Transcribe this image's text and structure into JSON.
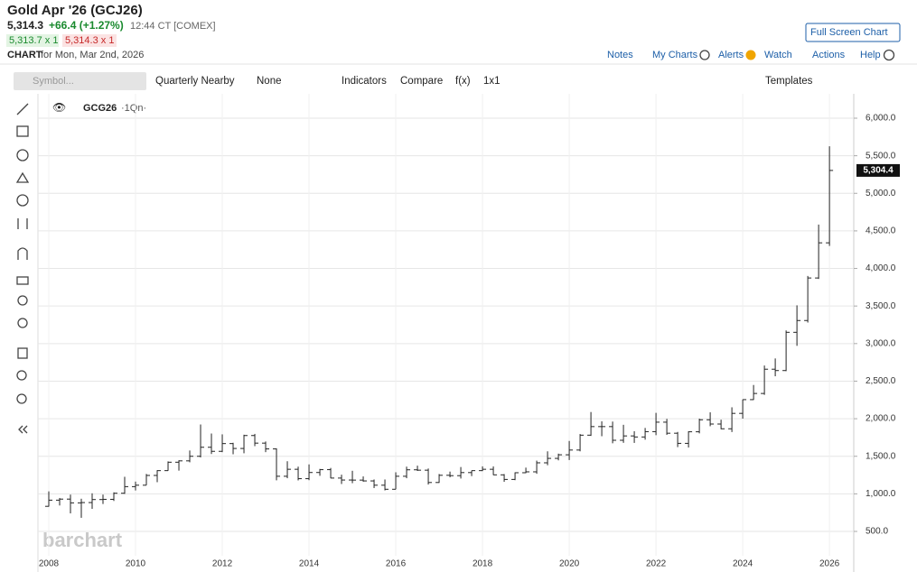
{
  "ui": {
    "title": "Gold Apr '26 (GCJ26)",
    "price": "5,314.3",
    "change": "+66.4 (+1.27%)",
    "time": "12:44 CT [COMEX]",
    "bid": "5,313.7 x 1",
    "ask": "5,314.3 x 1",
    "chart_label": "CHART",
    "chart_date": "for Mon, Mar 2nd, 2026",
    "fullscreen": "Full Screen Chart",
    "nav": [
      "Notes",
      "My Charts",
      "Alerts",
      "Watch",
      "Actions",
      "Help"
    ],
    "symbol_placeholder": "Symbol...",
    "toolbar": [
      "Quarterly Nearby",
      "None",
      "Indicators",
      "Compare",
      "f(x)",
      "1x1"
    ],
    "templates": "Templates",
    "legend_symbol": "GCG26",
    "legend_period": "·1Qn·",
    "watermark": "barchart"
  },
  "chart_data": {
    "type": "ohlc",
    "color": "#222222",
    "grid": true,
    "x": [
      2008,
      2008.25,
      2008.5,
      2008.75,
      2009,
      2009.25,
      2009.5,
      2009.75,
      2010,
      2010.25,
      2010.5,
      2010.75,
      2011,
      2011.25,
      2011.5,
      2011.75,
      2012,
      2012.25,
      2012.5,
      2012.75,
      2013,
      2013.25,
      2013.5,
      2013.75,
      2014,
      2014.25,
      2014.5,
      2014.75,
      2015,
      2015.25,
      2015.5,
      2015.75,
      2016,
      2016.25,
      2016.5,
      2016.75,
      2017,
      2017.25,
      2017.5,
      2017.75,
      2018,
      2018.25,
      2018.5,
      2018.75,
      2019,
      2019.25,
      2019.5,
      2019.75,
      2020,
      2020.25,
      2020.5,
      2020.75,
      2021,
      2021.25,
      2021.5,
      2021.75,
      2022,
      2022.25,
      2022.5,
      2022.75,
      2023,
      2023.25,
      2023.5,
      2023.75,
      2024,
      2024.25,
      2024.5,
      2024.75,
      2025,
      2025.25,
      2025.5,
      2025.75,
      2026
    ],
    "open": [
      834,
      916,
      930,
      880,
      884,
      924,
      927,
      1008,
      1096,
      1115,
      1245,
      1309,
      1421,
      1439,
      1500,
      1620,
      1566,
      1669,
      1604,
      1776,
      1675,
      1598,
      1234,
      1327,
      1202,
      1284,
      1322,
      1210,
      1184,
      1183,
      1172,
      1115,
      1061,
      1234,
      1320,
      1315,
      1151,
      1247,
      1242,
      1283,
      1309,
      1327,
      1253,
      1192,
      1281,
      1293,
      1413,
      1472,
      1520,
      1583,
      1781,
      1895,
      1895,
      1713,
      1771,
      1757,
      1828,
      1954,
      1807,
      1672,
      1826,
      1986,
      1929,
      1866,
      2071,
      2254,
      2336,
      2659,
      2641,
      3150,
      3307,
      3873,
      4341
    ],
    "high": [
      1033,
      945,
      990,
      935,
      1007,
      990,
      1020,
      1227,
      1163,
      1265,
      1315,
      1432,
      1447,
      1577,
      1923,
      1803,
      1792,
      1680,
      1787,
      1798,
      1697,
      1605,
      1434,
      1362,
      1392,
      1332,
      1345,
      1255,
      1307,
      1232,
      1191,
      1191,
      1287,
      1362,
      1375,
      1337,
      1264,
      1296,
      1357,
      1310,
      1366,
      1365,
      1263,
      1286,
      1349,
      1442,
      1566,
      1535,
      1704,
      1796,
      2089,
      1965,
      1962,
      1919,
      1834,
      1877,
      2078,
      1998,
      1824,
      1833,
      2001,
      2085,
      1987,
      2152,
      2256,
      2449,
      2708,
      2802,
      3175,
      3509,
      3900,
      4584,
      5626
    ],
    "low": [
      830,
      845,
      740,
      681,
      800,
      865,
      905,
      1000,
      1045,
      1115,
      1155,
      1307,
      1309,
      1420,
      1485,
      1530,
      1555,
      1527,
      1540,
      1635,
      1555,
      1180,
      1208,
      1179,
      1182,
      1240,
      1207,
      1131,
      1142,
      1162,
      1077,
      1046,
      1061,
      1208,
      1305,
      1124,
      1146,
      1220,
      1204,
      1236,
      1303,
      1250,
      1160,
      1182,
      1276,
      1267,
      1381,
      1446,
      1450,
      1566,
      1771,
      1767,
      1673,
      1679,
      1678,
      1721,
      1781,
      1785,
      1622,
      1617,
      1805,
      1900,
      1860,
      1823,
      2001,
      2250,
      2318,
      2565,
      2633,
      2970,
      3280,
      3860,
      4300
    ],
    "close": [
      916,
      930,
      880,
      884,
      924,
      927,
      1008,
      1096,
      1115,
      1245,
      1309,
      1421,
      1439,
      1500,
      1620,
      1566,
      1669,
      1604,
      1776,
      1675,
      1598,
      1234,
      1327,
      1202,
      1284,
      1322,
      1210,
      1184,
      1183,
      1172,
      1115,
      1061,
      1234,
      1320,
      1315,
      1151,
      1247,
      1242,
      1283,
      1309,
      1327,
      1253,
      1192,
      1281,
      1293,
      1413,
      1472,
      1520,
      1583,
      1781,
      1895,
      1895,
      1713,
      1771,
      1757,
      1828,
      1954,
      1807,
      1672,
      1826,
      1986,
      1929,
      1866,
      2071,
      2254,
      2336,
      2659,
      2641,
      3150,
      3307,
      3873,
      4341,
      5304.4
    ],
    "last_price": {
      "value": 5304.4,
      "label": "5,304.4"
    },
    "xlim": [
      2007.75,
      2026.56
    ],
    "xticks": [
      2008,
      2010,
      2012,
      2014,
      2016,
      2018,
      2020,
      2022,
      2024,
      2026
    ],
    "ylim": [
      224,
      6216
    ],
    "yticks": [
      {
        "value": 500,
        "label": "500.0"
      },
      {
        "value": 1000,
        "label": "1,000.0"
      },
      {
        "value": 1500,
        "label": "1,500.0"
      },
      {
        "value": 2000,
        "label": "2,000.0"
      },
      {
        "value": 2500,
        "label": "2,500.0"
      },
      {
        "value": 3000,
        "label": "3,000.0"
      },
      {
        "value": 3500,
        "label": "3,500.0"
      },
      {
        "value": 4000,
        "label": "4,000.0"
      },
      {
        "value": 4500,
        "label": "4,500.0"
      },
      {
        "value": 5000,
        "label": "5,000.0"
      },
      {
        "value": 5500,
        "label": "5,500.0"
      },
      {
        "value": 6000,
        "label": "6,000.0"
      }
    ]
  }
}
